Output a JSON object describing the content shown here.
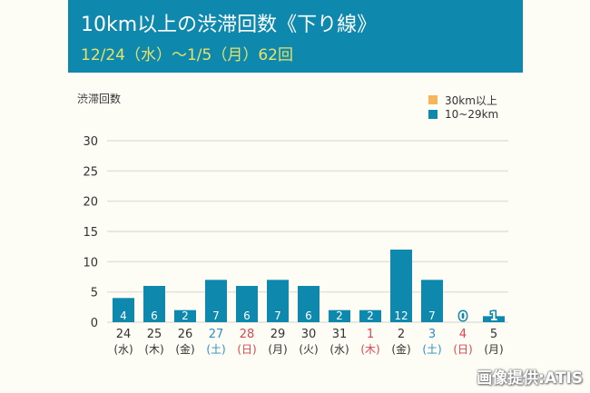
{
  "banner": {
    "title": "10km以上の渋滞回数《下り線》",
    "subtitle": "12/24（水）～1/5（月）62回"
  },
  "credit": "画像提供:ATIS",
  "colors": {
    "banner_bg": "#0e88ad",
    "subtitle_text": "#e7e36a",
    "bar_10_29": "#0e88ad",
    "bar_30plus": "#f7b55a",
    "saturday": "#2b8fc4",
    "holiday": "#d9454f",
    "weekday": "#333333"
  },
  "chart_data": {
    "type": "bar",
    "title": "10km以上の渋滞回数《下り線》",
    "subtitle": "12/24（水）～1/5（月）62回",
    "ylabel": "渋滞回数",
    "xlabel": "",
    "ylim": [
      0,
      30
    ],
    "yticks": [
      0,
      5,
      10,
      15,
      20,
      25,
      30
    ],
    "grid": true,
    "legend_position": "top-right",
    "legend": [
      {
        "name": "30km以上",
        "color": "#f7b55a"
      },
      {
        "name": "10~29km",
        "color": "#0e88ad"
      }
    ],
    "categories": [
      {
        "day": "24",
        "dow": "(水)",
        "type": "weekday"
      },
      {
        "day": "25",
        "dow": "(木)",
        "type": "weekday"
      },
      {
        "day": "26",
        "dow": "(金)",
        "type": "weekday"
      },
      {
        "day": "27",
        "dow": "(土)",
        "type": "saturday"
      },
      {
        "day": "28",
        "dow": "(日)",
        "type": "holiday"
      },
      {
        "day": "29",
        "dow": "(月)",
        "type": "weekday"
      },
      {
        "day": "30",
        "dow": "(火)",
        "type": "weekday"
      },
      {
        "day": "31",
        "dow": "(水)",
        "type": "weekday"
      },
      {
        "day": "1",
        "dow": "(木)",
        "type": "holiday"
      },
      {
        "day": "2",
        "dow": "(金)",
        "type": "weekday"
      },
      {
        "day": "3",
        "dow": "(土)",
        "type": "saturday"
      },
      {
        "day": "4",
        "dow": "(日)",
        "type": "holiday"
      },
      {
        "day": "5",
        "dow": "(月)",
        "type": "weekday"
      }
    ],
    "series": [
      {
        "name": "30km以上",
        "values": [
          0,
          0,
          0,
          0,
          0,
          0,
          0,
          0,
          0,
          0,
          0,
          0,
          0
        ]
      },
      {
        "name": "10~29km",
        "values": [
          4,
          6,
          2,
          7,
          6,
          7,
          6,
          2,
          2,
          12,
          7,
          0,
          1
        ]
      }
    ],
    "total": 62
  }
}
